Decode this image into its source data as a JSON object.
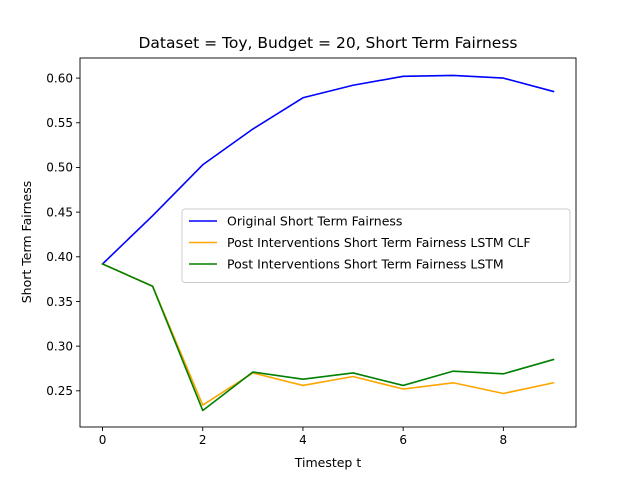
{
  "chart_data": {
    "type": "line",
    "title": "Dataset = Toy, Budget = 20, Short Term Fairness",
    "xlabel": "Timestep t",
    "ylabel": "Short Term Fairness",
    "xlim": [
      -0.45,
      9.45
    ],
    "ylim": [
      0.2095,
      0.6225
    ],
    "xticks": [
      0,
      2,
      4,
      6,
      8
    ],
    "yticks": [
      0.25,
      0.3,
      0.35,
      0.4,
      0.45,
      0.5,
      0.55,
      0.6
    ],
    "grid": false,
    "legend_position": "center-right",
    "x": [
      0,
      1,
      2,
      3,
      4,
      5,
      6,
      7,
      8,
      9
    ],
    "series": [
      {
        "name": "Original Short Term Fairness",
        "color": "#0000ff",
        "values": [
          0.392,
          0.446,
          0.503,
          0.543,
          0.578,
          0.592,
          0.602,
          0.603,
          0.6,
          0.585
        ]
      },
      {
        "name": "Post Interventions Short Term Fairness LSTM CLF",
        "color": "#ffa500",
        "values": [
          0.392,
          0.367,
          0.234,
          0.27,
          0.256,
          0.266,
          0.252,
          0.259,
          0.247,
          0.259
        ]
      },
      {
        "name": "Post Interventions Short Term Fairness LSTM",
        "color": "#008000",
        "values": [
          0.392,
          0.367,
          0.228,
          0.271,
          0.263,
          0.27,
          0.256,
          0.272,
          0.269,
          0.285
        ]
      }
    ]
  }
}
